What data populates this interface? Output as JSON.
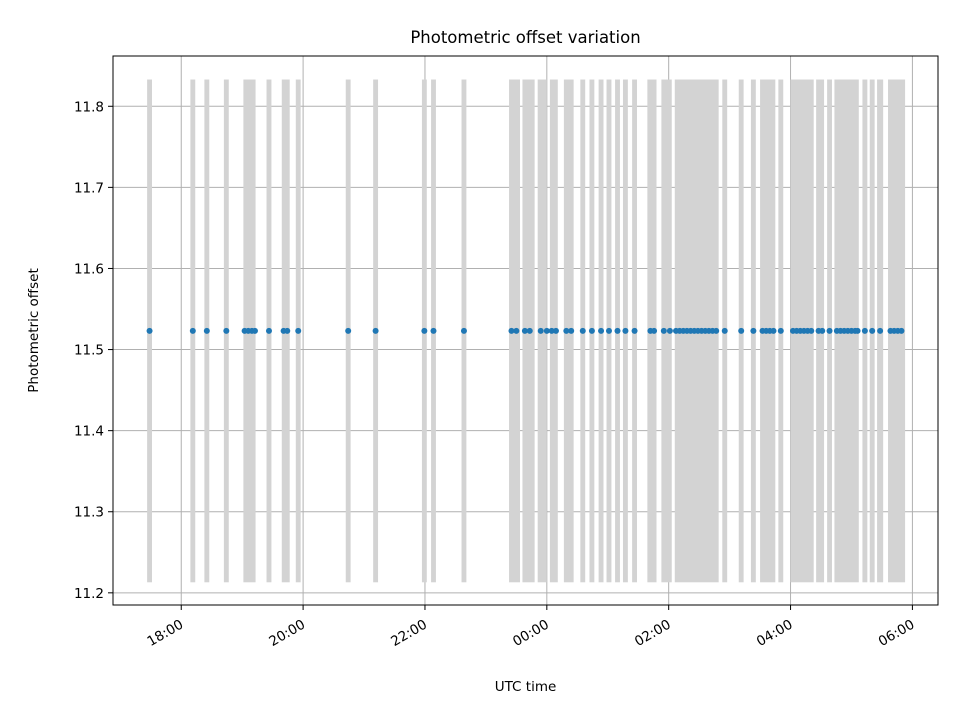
{
  "chart_data": {
    "type": "scatter",
    "title": "Photometric offset variation",
    "xlabel": "UTC time",
    "ylabel": "Photometric offset",
    "x_axis": "time",
    "x_start": "17:00",
    "xlim_hours": [
      16.88,
      30.42
    ],
    "ylim": [
      11.185,
      11.862
    ],
    "grid": true,
    "x_ticks": [
      {
        "hour": 18,
        "label": "18:00"
      },
      {
        "hour": 20,
        "label": "20:00"
      },
      {
        "hour": 22,
        "label": "22:00"
      },
      {
        "hour": 24,
        "label": "00:00"
      },
      {
        "hour": 26,
        "label": "02:00"
      },
      {
        "hour": 28,
        "label": "04:00"
      },
      {
        "hour": 30,
        "label": "06:00"
      }
    ],
    "y_ticks": [
      {
        "value": 11.2,
        "label": "11.2"
      },
      {
        "value": 11.3,
        "label": "11.3"
      },
      {
        "value": 11.4,
        "label": "11.4"
      },
      {
        "value": 11.5,
        "label": "11.5"
      },
      {
        "value": 11.6,
        "label": "11.6"
      },
      {
        "value": 11.7,
        "label": "11.7"
      },
      {
        "value": 11.8,
        "label": "11.8"
      }
    ],
    "span_ymin": 11.213,
    "span_ymax": 11.833,
    "span_color": "#d3d3d3",
    "point_color": "#1f77b4",
    "offset_value": 11.523,
    "spans_hours": [
      [
        17.44,
        17.52
      ],
      [
        18.15,
        18.23
      ],
      [
        18.38,
        18.46
      ],
      [
        18.7,
        18.78
      ],
      [
        19.02,
        19.22
      ],
      [
        19.4,
        19.48
      ],
      [
        19.65,
        19.78
      ],
      [
        19.88,
        19.96
      ],
      [
        20.7,
        20.78
      ],
      [
        21.15,
        21.23
      ],
      [
        21.95,
        22.03
      ],
      [
        22.1,
        22.18
      ],
      [
        22.6,
        22.68
      ],
      [
        23.38,
        23.56
      ],
      [
        23.6,
        23.8
      ],
      [
        23.85,
        24.0
      ],
      [
        24.05,
        24.18
      ],
      [
        24.28,
        24.44
      ],
      [
        24.55,
        24.63
      ],
      [
        24.7,
        24.78
      ],
      [
        24.85,
        24.93
      ],
      [
        24.98,
        25.06
      ],
      [
        25.12,
        25.2
      ],
      [
        25.25,
        25.33
      ],
      [
        25.4,
        25.48
      ],
      [
        25.65,
        25.8
      ],
      [
        25.88,
        26.05
      ],
      [
        26.1,
        26.82
      ],
      [
        26.88,
        26.96
      ],
      [
        27.15,
        27.23
      ],
      [
        27.35,
        27.43
      ],
      [
        27.5,
        27.75
      ],
      [
        27.8,
        27.88
      ],
      [
        28.0,
        28.38
      ],
      [
        28.42,
        28.55
      ],
      [
        28.6,
        28.68
      ],
      [
        28.72,
        29.12
      ],
      [
        29.18,
        29.26
      ],
      [
        29.3,
        29.38
      ],
      [
        29.42,
        29.52
      ],
      [
        29.6,
        29.88
      ]
    ],
    "points_hours": [
      17.48,
      18.19,
      18.42,
      18.74,
      19.04,
      19.1,
      19.16,
      19.21,
      19.44,
      19.68,
      19.74,
      19.92,
      20.74,
      21.19,
      21.99,
      22.14,
      22.64,
      23.42,
      23.5,
      23.64,
      23.72,
      23.9,
      24.0,
      24.08,
      24.15,
      24.32,
      24.4,
      24.59,
      24.74,
      24.89,
      25.02,
      25.16,
      25.29,
      25.44,
      25.7,
      25.76,
      25.92,
      26.02,
      26.12,
      26.18,
      26.24,
      26.3,
      26.36,
      26.42,
      26.48,
      26.54,
      26.6,
      26.66,
      26.72,
      26.78,
      26.92,
      27.19,
      27.39,
      27.54,
      27.6,
      27.66,
      27.72,
      27.84,
      28.04,
      28.1,
      28.16,
      28.22,
      28.28,
      28.34,
      28.46,
      28.52,
      28.64,
      28.76,
      28.82,
      28.88,
      28.94,
      29.0,
      29.06,
      29.1,
      29.22,
      29.34,
      29.47,
      29.64,
      29.7,
      29.76,
      29.82
    ]
  }
}
